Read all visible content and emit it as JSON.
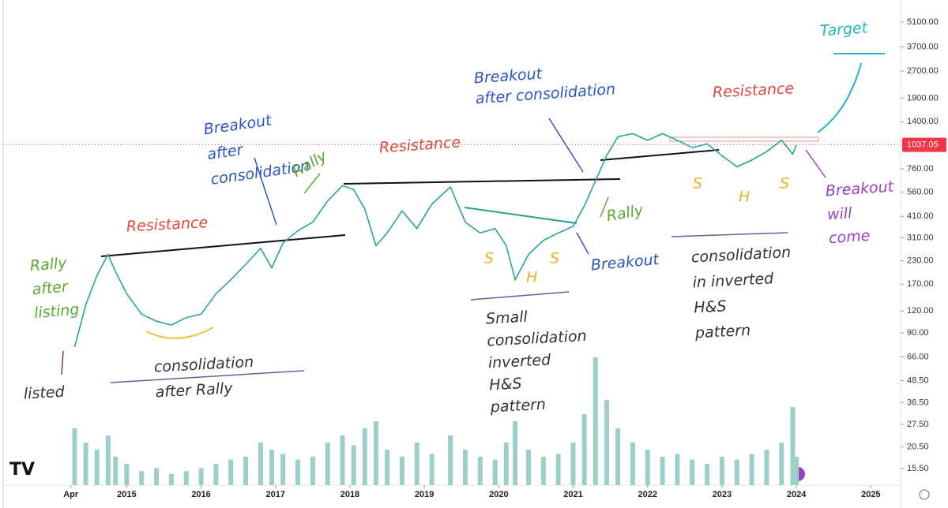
{
  "chart_data": {
    "type": "line",
    "log_scale": true,
    "grid": false,
    "x": [
      2014.3,
      2014.45,
      2014.6,
      2014.75,
      2014.85,
      2015.0,
      2015.2,
      2015.4,
      2015.6,
      2015.8,
      2016.0,
      2016.2,
      2016.4,
      2016.6,
      2016.8,
      2016.95,
      2017.1,
      2017.3,
      2017.5,
      2017.7,
      2017.9,
      2018.05,
      2018.2,
      2018.35,
      2018.5,
      2018.7,
      2018.9,
      2019.1,
      2019.35,
      2019.55,
      2019.75,
      2019.95,
      2020.1,
      2020.22,
      2020.4,
      2020.6,
      2020.8,
      2021.0,
      2021.15,
      2021.3,
      2021.45,
      2021.6,
      2021.8,
      2022.0,
      2022.2,
      2022.4,
      2022.6,
      2022.8,
      2023.0,
      2023.2,
      2023.4,
      2023.6,
      2023.8,
      2023.95,
      2024.0
    ],
    "series": [
      {
        "color": "#26a69a",
        "values": [
          75,
          130,
          190,
          250,
          200,
          150,
          115,
          105,
          100,
          110,
          115,
          150,
          180,
          220,
          270,
          210,
          290,
          340,
          380,
          500,
          610,
          580,
          450,
          280,
          330,
          440,
          350,
          480,
          600,
          380,
          330,
          350,
          280,
          180,
          250,
          300,
          330,
          360,
          470,
          650,
          900,
          1150,
          1200,
          1100,
          1200,
          1100,
          1000,
          1050,
          900,
          780,
          850,
          950,
          1100,
          920,
          1037.05
        ]
      },
      {
        "axis": "volume",
        "color": "#9ccfc9",
        "values": [
          40,
          30,
          25,
          35,
          20,
          15,
          10,
          12,
          8,
          10,
          12,
          15,
          18,
          20,
          30,
          25,
          22,
          18,
          20,
          30,
          35,
          28,
          40,
          45,
          25,
          20,
          30,
          22,
          35,
          25,
          20,
          18,
          30,
          45,
          25,
          20,
          22,
          30,
          50,
          90,
          60,
          40,
          30,
          25,
          20,
          22,
          18,
          15,
          20,
          18,
          22,
          25,
          30,
          55,
          20
        ]
      }
    ],
    "xlim": [
      2013.34,
      2025.4
    ],
    "xticks": [
      {
        "value": 2014.25,
        "label": "Apr"
      },
      2015,
      2016,
      2017,
      2018,
      2019,
      2020,
      2021,
      2022,
      2023,
      2024,
      2025
    ],
    "ylim": [
      12.5,
      6800
    ],
    "yticks": [
      {
        "value": 5100,
        "label": "5100.00"
      },
      {
        "value": 3700,
        "label": "3700.00"
      },
      {
        "value": 2700,
        "label": "2700.00"
      },
      {
        "value": 1900,
        "label": "1900.00"
      },
      {
        "value": 1400,
        "label": "1400.00"
      },
      {
        "value": 760,
        "label": "760.00"
      },
      {
        "value": 560,
        "label": "560.00"
      },
      {
        "value": 410,
        "label": "410.00"
      },
      {
        "value": 310,
        "label": "310.00"
      },
      {
        "value": 230,
        "label": "230.00"
      },
      {
        "value": 170,
        "label": "170.00"
      },
      {
        "value": 120,
        "label": "120.00"
      },
      {
        "value": 90,
        "label": "90.00"
      },
      {
        "value": 66,
        "label": "66.00"
      },
      {
        "value": 48.5,
        "label": "48.50"
      },
      {
        "value": 36.5,
        "label": "36.50"
      },
      {
        "value": 27.5,
        "label": "27.50"
      },
      {
        "value": 20.5,
        "label": "20.50"
      },
      {
        "value": 15.5,
        "label": "15.50"
      }
    ],
    "volume_lim": [
      0,
      100
    ],
    "annotations": [
      {
        "lines": [
          "Target"
        ],
        "color": "#1fb5c9"
      },
      {
        "lines": [
          "Breakout",
          "after consolidation"
        ],
        "color": "#2a55c4"
      },
      {
        "lines": [
          "Resistance"
        ],
        "color": "#e0483e"
      },
      {
        "lines": [
          "Breakout",
          "after",
          "consolidation"
        ],
        "color": "#2a55c4"
      },
      {
        "lines": [
          "Resistance"
        ],
        "color": "#e0483e"
      },
      {
        "lines": [
          "Rally"
        ],
        "color": "#5aa832"
      },
      {
        "lines": [
          "Resistance"
        ],
        "color": "#e0483e"
      },
      {
        "lines": [
          "Rally",
          "after",
          "listing"
        ],
        "color": "#5aa832"
      },
      {
        "lines": [
          "Rally"
        ],
        "color": "#5aa832"
      },
      {
        "lines": [
          "Breakout"
        ],
        "color": "#2a55c4"
      },
      {
        "lines": [
          "Breakout",
          "will",
          "come"
        ],
        "color": "#9b3fc4"
      },
      {
        "lines": [
          "consolidation",
          "in inverted",
          "H&S",
          "pattern"
        ],
        "color": "#333"
      },
      {
        "lines": [
          "S"
        ],
        "color": "#e8b52a"
      },
      {
        "lines": [
          "H"
        ],
        "color": "#e8b52a"
      },
      {
        "lines": [
          "S"
        ],
        "color": "#e8b52a"
      },
      {
        "lines": [
          "S"
        ],
        "color": "#e8b52a"
      },
      {
        "lines": [
          "H"
        ],
        "color": "#e8b52a"
      },
      {
        "lines": [
          "S"
        ],
        "color": "#e8b52a"
      },
      {
        "lines": [
          "Small",
          "consolidation",
          "inverted",
          "H&S",
          "pattern"
        ],
        "color": "#333"
      },
      {
        "lines": [
          "listed"
        ],
        "color": "#333"
      },
      {
        "lines": [
          "consolidation",
          "after Rally"
        ],
        "color": "#333"
      }
    ]
  }
}
